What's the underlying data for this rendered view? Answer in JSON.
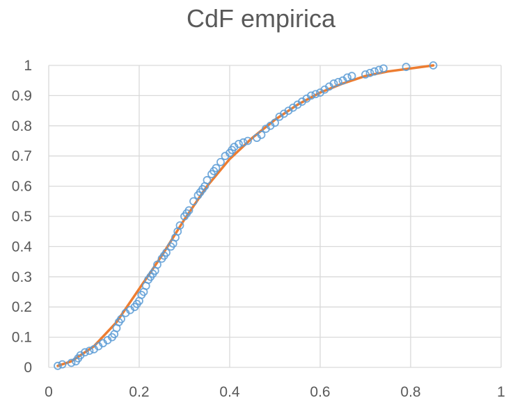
{
  "chart_data": {
    "type": "scatter",
    "title": "CdF empirica",
    "xlabel": "",
    "ylabel": "",
    "xlim": [
      0,
      1
    ],
    "ylim": [
      0,
      1
    ],
    "xticks": [
      "0",
      "0.2",
      "0.4",
      "0.6",
      "0.8",
      "1"
    ],
    "yticks": [
      "0",
      "0.1",
      "0.2",
      "0.3",
      "0.4",
      "0.5",
      "0.6",
      "0.7",
      "0.8",
      "0.9",
      "1"
    ],
    "grid": true,
    "legend": "none",
    "colors": {
      "points": "#5b9bd5",
      "fit_line": "#ed7d31",
      "grid": "#d9d9d9",
      "text": "#595959"
    },
    "series": [
      {
        "kind": "points",
        "x": [
          0.02,
          0.03,
          0.05,
          0.06,
          0.065,
          0.07,
          0.08,
          0.09,
          0.1,
          0.11,
          0.12,
          0.13,
          0.14,
          0.145,
          0.15,
          0.155,
          0.16,
          0.17,
          0.18,
          0.19,
          0.195,
          0.2,
          0.205,
          0.21,
          0.215,
          0.22,
          0.225,
          0.23,
          0.235,
          0.24,
          0.25,
          0.255,
          0.26,
          0.27,
          0.275,
          0.28,
          0.285,
          0.29,
          0.3,
          0.305,
          0.31,
          0.32,
          0.33,
          0.335,
          0.34,
          0.345,
          0.35,
          0.36,
          0.365,
          0.37,
          0.38,
          0.39,
          0.4,
          0.405,
          0.41,
          0.42,
          0.43,
          0.44,
          0.46,
          0.47,
          0.48,
          0.49,
          0.5,
          0.51,
          0.52,
          0.53,
          0.54,
          0.55,
          0.56,
          0.57,
          0.58,
          0.59,
          0.6,
          0.61,
          0.62,
          0.63,
          0.64,
          0.65,
          0.66,
          0.67,
          0.7,
          0.71,
          0.72,
          0.73,
          0.74,
          0.79,
          0.85
        ],
        "y": [
          0.005,
          0.01,
          0.015,
          0.02,
          0.03,
          0.04,
          0.05,
          0.055,
          0.06,
          0.07,
          0.08,
          0.09,
          0.1,
          0.11,
          0.13,
          0.15,
          0.16,
          0.18,
          0.19,
          0.2,
          0.21,
          0.22,
          0.24,
          0.25,
          0.27,
          0.29,
          0.3,
          0.31,
          0.32,
          0.34,
          0.36,
          0.37,
          0.38,
          0.4,
          0.41,
          0.43,
          0.45,
          0.47,
          0.5,
          0.51,
          0.52,
          0.55,
          0.57,
          0.58,
          0.59,
          0.6,
          0.62,
          0.64,
          0.65,
          0.66,
          0.68,
          0.7,
          0.71,
          0.72,
          0.73,
          0.74,
          0.745,
          0.75,
          0.76,
          0.77,
          0.79,
          0.8,
          0.81,
          0.83,
          0.84,
          0.85,
          0.86,
          0.87,
          0.88,
          0.89,
          0.9,
          0.905,
          0.91,
          0.92,
          0.93,
          0.94,
          0.945,
          0.95,
          0.96,
          0.965,
          0.97,
          0.975,
          0.98,
          0.985,
          0.99,
          0.995,
          1.0
        ]
      },
      {
        "kind": "line",
        "x": [
          0.02,
          0.05,
          0.1,
          0.15,
          0.2,
          0.25,
          0.3,
          0.35,
          0.4,
          0.45,
          0.5,
          0.55,
          0.6,
          0.65,
          0.7,
          0.75,
          0.8,
          0.85
        ],
        "y": [
          0.005,
          0.02,
          0.07,
          0.15,
          0.26,
          0.37,
          0.49,
          0.6,
          0.69,
          0.76,
          0.82,
          0.87,
          0.91,
          0.94,
          0.965,
          0.98,
          0.99,
          1.0
        ]
      }
    ]
  }
}
